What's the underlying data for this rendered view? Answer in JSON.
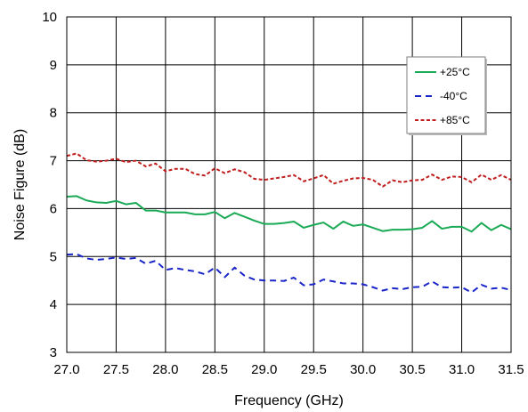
{
  "chart_data": {
    "type": "line",
    "title": "",
    "xlabel": "Frequency (GHz)",
    "ylabel": "Noise Figure (dB)",
    "xlim": [
      27.0,
      31.5
    ],
    "ylim": [
      3,
      10
    ],
    "grid": true,
    "legend_position": "top-right",
    "x_ticks": [
      "27.0",
      "27.5",
      "28.0",
      "28.5",
      "29.0",
      "29.5",
      "30.0",
      "30.5",
      "31.0",
      "31.5"
    ],
    "y_ticks": [
      "3",
      "4",
      "5",
      "6",
      "7",
      "8",
      "9",
      "10"
    ],
    "x": [
      27.0,
      27.1,
      27.2,
      27.3,
      27.4,
      27.5,
      27.6,
      27.7,
      27.8,
      27.9,
      28.0,
      28.1,
      28.2,
      28.3,
      28.4,
      28.5,
      28.6,
      28.7,
      28.8,
      28.9,
      29.0,
      29.1,
      29.2,
      29.3,
      29.4,
      29.5,
      29.6,
      29.7,
      29.8,
      29.9,
      30.0,
      30.1,
      30.2,
      30.3,
      30.4,
      30.5,
      30.6,
      30.7,
      30.8,
      30.9,
      31.0,
      31.1,
      31.2,
      31.3,
      31.4,
      31.5
    ],
    "series": [
      {
        "name": "+25°C",
        "color": "#1aaa55",
        "dash": "solid",
        "values": [
          6.25,
          6.26,
          6.17,
          6.13,
          6.12,
          6.16,
          6.09,
          6.12,
          5.96,
          5.96,
          5.92,
          5.92,
          5.92,
          5.88,
          5.88,
          5.93,
          5.8,
          5.91,
          5.83,
          5.75,
          5.68,
          5.68,
          5.7,
          5.73,
          5.6,
          5.66,
          5.71,
          5.58,
          5.73,
          5.64,
          5.67,
          5.6,
          5.53,
          5.56,
          5.56,
          5.57,
          5.6,
          5.74,
          5.58,
          5.62,
          5.62,
          5.52,
          5.7,
          5.55,
          5.66,
          5.57
        ]
      },
      {
        "name": "-40°C",
        "color": "#1a26c8",
        "dash": "dashed",
        "values": [
          5.04,
          5.05,
          4.96,
          4.93,
          4.95,
          4.98,
          4.95,
          4.97,
          4.85,
          4.91,
          4.72,
          4.76,
          4.72,
          4.69,
          4.63,
          4.77,
          4.57,
          4.77,
          4.6,
          4.52,
          4.5,
          4.5,
          4.49,
          4.56,
          4.4,
          4.42,
          4.52,
          4.48,
          4.44,
          4.44,
          4.42,
          4.36,
          4.29,
          4.34,
          4.32,
          4.36,
          4.37,
          4.48,
          4.36,
          4.35,
          4.36,
          4.25,
          4.41,
          4.33,
          4.35,
          4.3
        ]
      },
      {
        "name": "+85°C",
        "color": "#c01e1e",
        "dash": "dotted",
        "values": [
          7.1,
          7.15,
          7.01,
          6.98,
          7.0,
          7.04,
          6.97,
          7.0,
          6.88,
          6.94,
          6.78,
          6.83,
          6.83,
          6.72,
          6.69,
          6.84,
          6.74,
          6.82,
          6.76,
          6.62,
          6.6,
          6.63,
          6.66,
          6.7,
          6.57,
          6.63,
          6.7,
          6.52,
          6.58,
          6.63,
          6.64,
          6.6,
          6.46,
          6.59,
          6.55,
          6.59,
          6.6,
          6.71,
          6.6,
          6.67,
          6.66,
          6.55,
          6.71,
          6.6,
          6.7,
          6.6
        ]
      }
    ]
  }
}
